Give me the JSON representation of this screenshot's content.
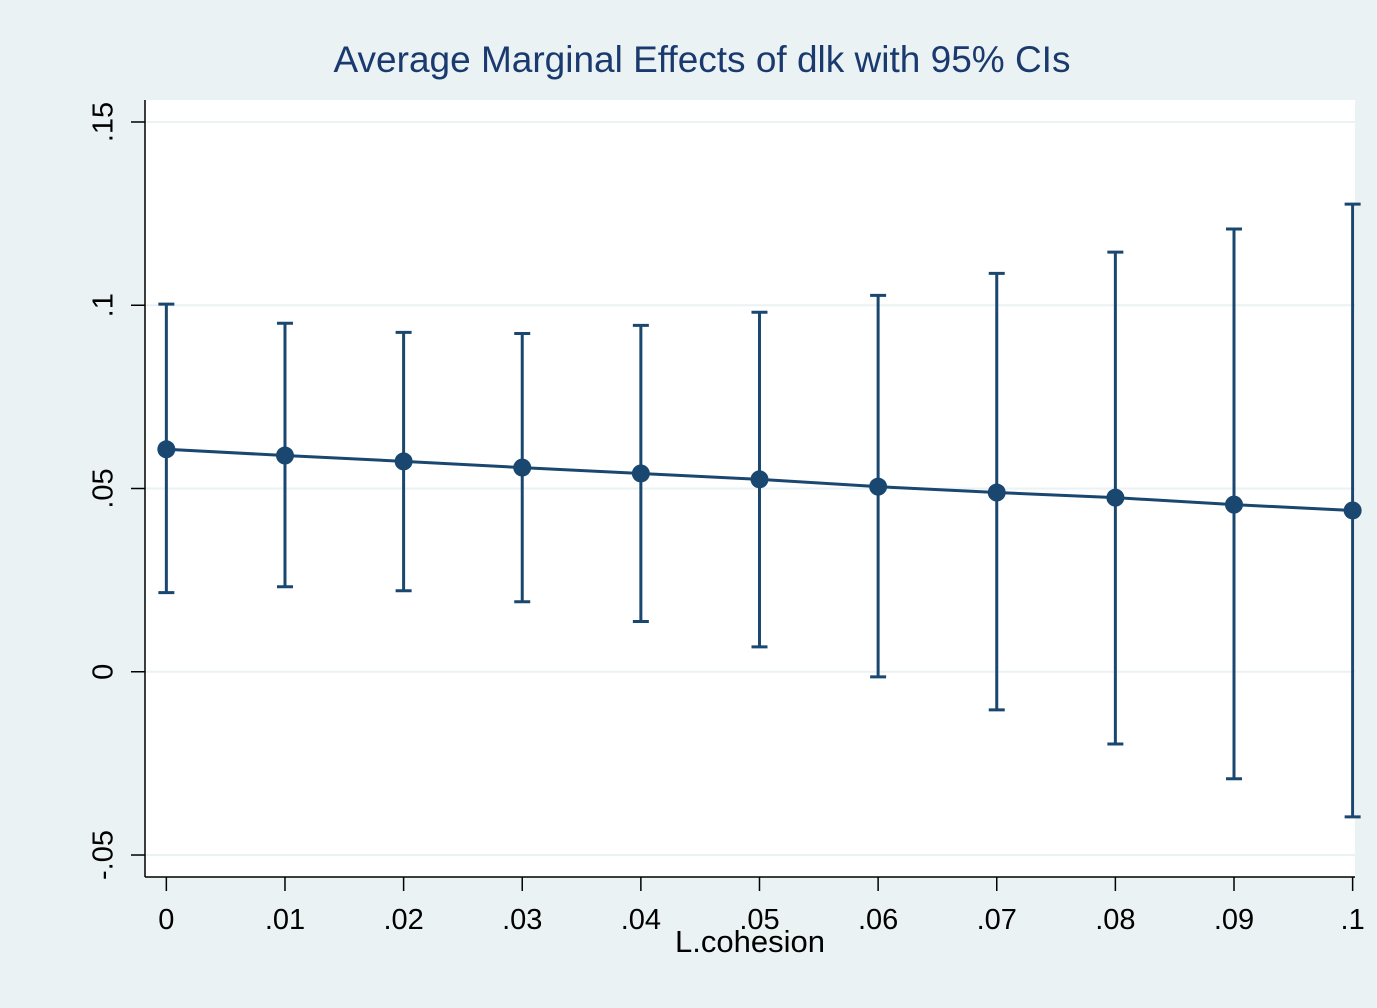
{
  "chart_data": {
    "type": "errorbar-line",
    "title": "Average Marginal Effects of dlk with 95% CIs",
    "x_label": "L.cohesion",
    "x": [
      0,
      0.01,
      0.02,
      0.03,
      0.04,
      0.05,
      0.06,
      0.07,
      0.08,
      0.09,
      0.1
    ],
    "series": [
      {
        "color": "#1a476f",
        "values": [
          0.0607,
          0.059,
          0.0574,
          0.0557,
          0.0541,
          0.0525,
          0.0505,
          0.0489,
          0.0475,
          0.0456,
          0.044
        ],
        "lower": [
          0.0216,
          0.0232,
          0.0221,
          0.0191,
          0.0137,
          0.0068,
          -0.0014,
          -0.0104,
          -0.0197,
          -0.0292,
          -0.0396
        ],
        "upper": [
          0.1003,
          0.0951,
          0.0926,
          0.0923,
          0.0945,
          0.0981,
          0.1027,
          0.1087,
          0.1145,
          0.1208,
          0.1276
        ]
      }
    ],
    "xlim": [
      -0.0018,
      0.1002
    ],
    "ylim": [
      -0.056,
      0.156
    ],
    "xticks": [
      0,
      {
        "value": 0.01,
        "label": ".01"
      },
      {
        "value": 0.02,
        "label": ".02"
      },
      {
        "value": 0.03,
        "label": ".03"
      },
      {
        "value": 0.04,
        "label": ".04"
      },
      {
        "value": 0.05,
        "label": ".05"
      },
      {
        "value": 0.06,
        "label": ".06"
      },
      {
        "value": 0.07,
        "label": ".07"
      },
      {
        "value": 0.08,
        "label": ".08"
      },
      {
        "value": 0.09,
        "label": ".09"
      },
      {
        "value": 0.1,
        "label": ".1"
      }
    ],
    "yticks": [
      {
        "value": -0.05,
        "label": "-.05"
      },
      0,
      {
        "value": 0.05,
        "label": ".05"
      },
      {
        "value": 0.1,
        "label": ".1"
      },
      {
        "value": 0.15,
        "label": ".15"
      }
    ],
    "grid": true
  }
}
